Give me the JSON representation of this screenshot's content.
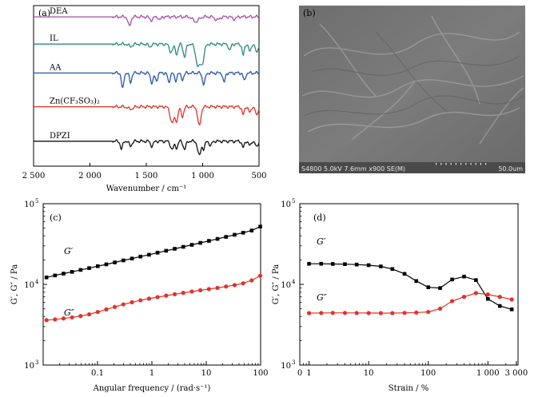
{
  "chart_data": [
    {
      "panel": "(a)",
      "type": "line",
      "xlabel": "Wavenumber / cm⁻¹",
      "xlim": [
        2500,
        500
      ],
      "xticks": [
        {
          "v": 2500,
          "label": "2 500"
        },
        {
          "v": 2000,
          "label": "2 000"
        },
        {
          "v": 1500,
          "label": "1 500"
        },
        {
          "v": 1000,
          "label": "1 000"
        },
        {
          "v": 500,
          "label": "500"
        }
      ],
      "series": [
        {
          "name": "DEA",
          "color": "#a64ca6",
          "base": 0.93,
          "peaks": [
            [
              1650,
              0.06,
              12
            ],
            [
              1455,
              0.02,
              15
            ],
            [
              1380,
              0.02,
              10
            ],
            [
              1060,
              0.03,
              25
            ],
            [
              870,
              0.02,
              20
            ],
            [
              720,
              0.015,
              15
            ]
          ]
        },
        {
          "name": "IL",
          "color": "#2a8a7e",
          "base": 0.76,
          "peaks": [
            [
              1640,
              0.015,
              15
            ],
            [
              1470,
              0.02,
              10
            ],
            [
              1280,
              0.05,
              15
            ],
            [
              1230,
              0.06,
              12
            ],
            [
              1160,
              0.08,
              12
            ],
            [
              1040,
              0.14,
              20
            ],
            [
              1000,
              0.1,
              15
            ],
            [
              760,
              0.04,
              10
            ],
            [
              640,
              0.07,
              10
            ],
            [
              580,
              0.05,
              10
            ],
            [
              520,
              0.06,
              10
            ]
          ]
        },
        {
          "name": "AA",
          "color": "#2456b0",
          "base": 0.58,
          "peaks": [
            [
              1710,
              0.1,
              10
            ],
            [
              1640,
              0.06,
              10
            ],
            [
              1450,
              0.06,
              12
            ],
            [
              1410,
              0.05,
              10
            ],
            [
              1300,
              0.06,
              10
            ],
            [
              1240,
              0.05,
              10
            ],
            [
              1180,
              0.04,
              12
            ],
            [
              990,
              0.07,
              12
            ],
            [
              810,
              0.06,
              10
            ],
            [
              630,
              0.05,
              10
            ]
          ]
        },
        {
          "name": "Zn(CF₃SO₃)₂",
          "color": "#e0322a",
          "base": 0.37,
          "peaks": [
            [
              1640,
              0.015,
              20
            ],
            [
              1270,
              0.1,
              18
            ],
            [
              1230,
              0.08,
              12
            ],
            [
              1180,
              0.06,
              12
            ],
            [
              1030,
              0.12,
              14
            ],
            [
              640,
              0.05,
              10
            ],
            [
              580,
              0.04,
              10
            ],
            [
              520,
              0.06,
              10
            ]
          ]
        },
        {
          "name": "DPZI",
          "color": "#111111",
          "base": 0.155,
          "peaks": [
            [
              1720,
              0.05,
              10
            ],
            [
              1640,
              0.03,
              12
            ],
            [
              1450,
              0.03,
              12
            ],
            [
              1270,
              0.05,
              15
            ],
            [
              1230,
              0.04,
              10
            ],
            [
              1160,
              0.05,
              12
            ],
            [
              1030,
              0.09,
              14
            ],
            [
              990,
              0.05,
              10
            ],
            [
              930,
              0.03,
              10
            ],
            [
              640,
              0.04,
              10
            ],
            [
              580,
              0.03,
              10
            ],
            [
              520,
              0.04,
              10
            ]
          ]
        }
      ]
    },
    {
      "panel": "(c)",
      "type": "scatter",
      "xscale": "log",
      "yscale": "log",
      "xlabel": "Angular frequency / (rad·s⁻¹)",
      "ylabel": "G′, G″ / Pa",
      "xlim": [
        0.01,
        100
      ],
      "ylim": [
        1000,
        100000
      ],
      "xticks": [
        {
          "v": 0.1,
          "label": "0.1"
        },
        {
          "v": 1,
          "label": "1"
        },
        {
          "v": 10,
          "label": "10"
        },
        {
          "v": 100,
          "label": "100"
        }
      ],
      "yticks": [
        {
          "v": 1000,
          "label": "10",
          "sup": "3"
        },
        {
          "v": 10000,
          "label": "10",
          "sup": "4"
        },
        {
          "v": 100000,
          "label": "10",
          "sup": "5"
        }
      ],
      "series": [
        {
          "name": "G′",
          "color": "#000000",
          "marker": "square",
          "x": [
            0.0115,
            0.0165,
            0.0237,
            0.034,
            0.0489,
            0.0702,
            0.101,
            0.145,
            0.208,
            0.299,
            0.43,
            0.617,
            0.886,
            1.27,
            1.83,
            2.63,
            3.78,
            5.43,
            7.8,
            11.2,
            16.1,
            23.1,
            33.2,
            47.7,
            68.5,
            98.5
          ],
          "y": [
            12200,
            12900,
            13600,
            14300,
            15100,
            15900,
            16800,
            17700,
            18700,
            19800,
            20900,
            22100,
            23300,
            24700,
            26100,
            27600,
            29200,
            30900,
            32700,
            34600,
            36600,
            38800,
            41200,
            43700,
            46500,
            52000
          ]
        },
        {
          "name": "G″",
          "color": "#e0322a",
          "marker": "circle",
          "x": [
            0.0115,
            0.0165,
            0.0237,
            0.034,
            0.0489,
            0.0702,
            0.101,
            0.145,
            0.208,
            0.299,
            0.43,
            0.617,
            0.886,
            1.27,
            1.83,
            2.63,
            3.78,
            5.43,
            7.8,
            11.2,
            16.1,
            23.1,
            33.2,
            47.7,
            68.5,
            98.5
          ],
          "y": [
            3600,
            3680,
            3780,
            3900,
            4050,
            4250,
            4550,
            4900,
            5250,
            5650,
            6000,
            6350,
            6650,
            6950,
            7250,
            7550,
            7850,
            8150,
            8450,
            8750,
            9050,
            9400,
            9800,
            10300,
            11200,
            12800
          ]
        }
      ]
    },
    {
      "panel": "(d)",
      "type": "scatter",
      "xscale": "log",
      "yscale": "log",
      "xlabel": "Strain / %",
      "ylabel": "G′, G″ / Pa",
      "xlim": [
        0.7,
        3200
      ],
      "ylim": [
        1000,
        100000
      ],
      "xticks": [
        {
          "v": 1,
          "label": "1"
        },
        {
          "v": 10,
          "label": "10"
        },
        {
          "v": 100,
          "label": "100"
        },
        {
          "v": 1000,
          "label": "1 000"
        },
        {
          "v": 3000,
          "label": "3 000"
        }
      ],
      "x_extra_label": {
        "v": 0.7,
        "label": "0"
      },
      "yticks": [
        {
          "v": 1000,
          "label": "10",
          "sup": "3"
        },
        {
          "v": 10000,
          "label": "10",
          "sup": "4"
        },
        {
          "v": 100000,
          "label": "10",
          "sup": "5"
        }
      ],
      "series": [
        {
          "name": "G′",
          "color": "#000000",
          "marker": "square",
          "x": [
            1,
            1.6,
            2.5,
            4,
            6.3,
            10,
            16,
            25,
            40,
            63,
            100,
            158,
            251,
            398,
            631,
            1000,
            1585,
            2512
          ],
          "y": [
            18000,
            18000,
            17900,
            17800,
            17600,
            17300,
            16700,
            15500,
            13500,
            11000,
            9200,
            9000,
            11500,
            12500,
            11300,
            6600,
            5400,
            4900
          ]
        },
        {
          "name": "G″",
          "color": "#e0322a",
          "marker": "circle",
          "x": [
            1,
            1.6,
            2.5,
            4,
            6.3,
            10,
            16,
            25,
            40,
            63,
            100,
            158,
            251,
            398,
            631,
            1000,
            1585,
            2512
          ],
          "y": [
            4400,
            4420,
            4430,
            4430,
            4420,
            4410,
            4400,
            4400,
            4430,
            4470,
            4550,
            5000,
            6200,
            7000,
            7800,
            7500,
            7000,
            6500
          ]
        }
      ]
    }
  ],
  "sem": {
    "panel": "(b)",
    "info": "S4800 5.0kV 7.6mm x900 SE(M)",
    "scale": "50.0um"
  }
}
